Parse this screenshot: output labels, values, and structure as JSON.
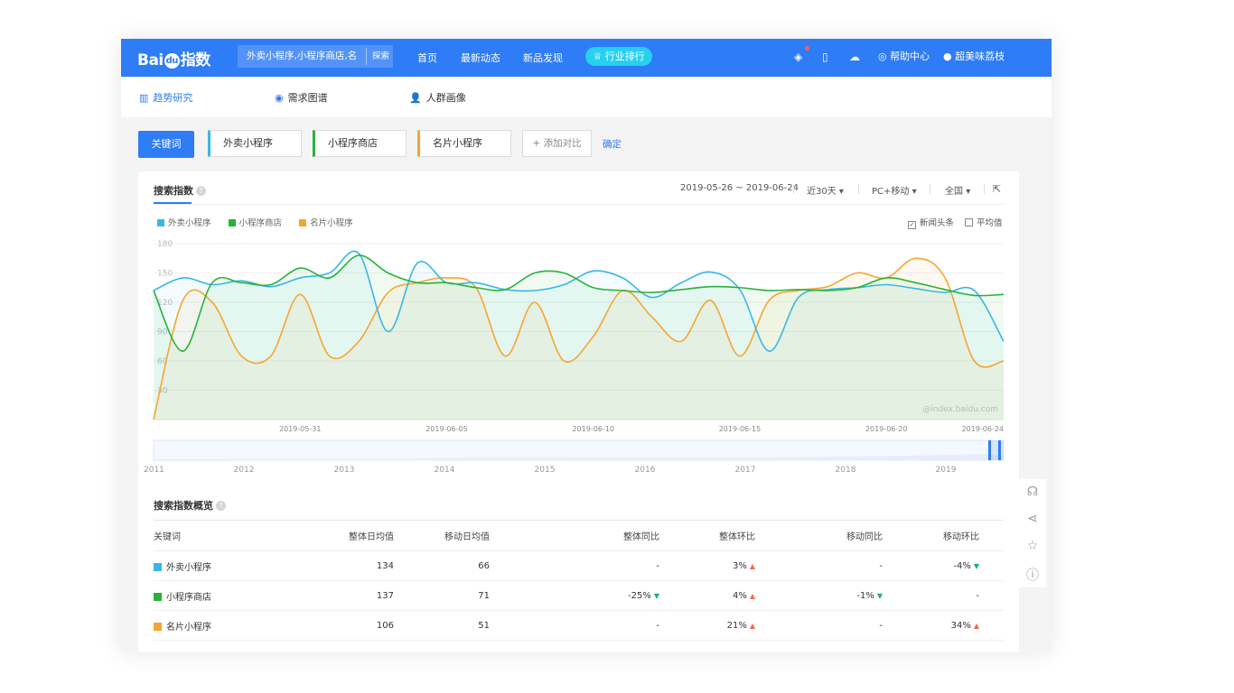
{
  "header": {
    "logo": {
      "pre": "Bai",
      "du": "du",
      "post": "指数"
    },
    "search_value": "外卖小程序,小程序商店,名",
    "search_button": "探索",
    "nav": [
      "首页",
      "最新动态",
      "新品发现"
    ],
    "ranking_pill": "行业排行",
    "help": "帮助中心",
    "user": "超美味荔枝"
  },
  "subnav": [
    "趋势研究",
    "需求图谱",
    "人群画像"
  ],
  "keywords": {
    "label": "关键词",
    "items": [
      "外卖小程序",
      "小程序商店",
      "名片小程序"
    ],
    "add_compare": "添加对比",
    "confirm": "确定"
  },
  "panel": {
    "title": "搜索指数",
    "date_range": "2019-05-26 ~ 2019-06-24",
    "period": "近30天",
    "device": "PC+移动",
    "region": "全国",
    "checkbox_news": "新闻头条",
    "checkbox_avg": "平均值"
  },
  "colors": {
    "primary": "#2e7cf6",
    "s1": "#39b7e6",
    "s2": "#27b33a",
    "s3": "#f5a631",
    "pill": "#27d0ef"
  },
  "chart_data": {
    "type": "line",
    "watermark": "@index.baidu.com",
    "ylim": [
      0,
      180
    ],
    "y_ticks": [
      30,
      60,
      90,
      120,
      150,
      180
    ],
    "x_tick_labels": [
      "2019-05-31",
      "2019-06-05",
      "2019-06-10",
      "2019-06-15",
      "2019-06-20",
      "2019-06-24"
    ],
    "x": [
      "2019-05-26",
      "2019-05-27",
      "2019-05-28",
      "2019-05-29",
      "2019-05-30",
      "2019-05-31",
      "2019-06-01",
      "2019-06-02",
      "2019-06-03",
      "2019-06-04",
      "2019-06-05",
      "2019-06-06",
      "2019-06-07",
      "2019-06-08",
      "2019-06-09",
      "2019-06-10",
      "2019-06-11",
      "2019-06-12",
      "2019-06-13",
      "2019-06-14",
      "2019-06-15",
      "2019-06-16",
      "2019-06-17",
      "2019-06-18",
      "2019-06-19",
      "2019-06-20",
      "2019-06-21",
      "2019-06-22",
      "2019-06-23",
      "2019-06-24"
    ],
    "series": [
      {
        "name": "外卖小程序",
        "color": "#39b7e6",
        "values": [
          132,
          145,
          138,
          142,
          136,
          145,
          150,
          170,
          90,
          160,
          140,
          140,
          133,
          132,
          138,
          152,
          145,
          125,
          140,
          151,
          133,
          70,
          125,
          133,
          135,
          138,
          134,
          130,
          132,
          80
        ]
      },
      {
        "name": "小程序商店",
        "color": "#27b33a",
        "values": [
          132,
          70,
          140,
          140,
          138,
          155,
          145,
          168,
          150,
          140,
          140,
          135,
          133,
          150,
          150,
          135,
          132,
          130,
          133,
          136,
          135,
          132,
          133,
          132,
          135,
          145,
          140,
          133,
          127,
          128
        ]
      },
      {
        "name": "名片小程序",
        "color": "#f5a631",
        "values": [
          0,
          122,
          120,
          65,
          65,
          128,
          65,
          80,
          130,
          140,
          145,
          135,
          65,
          120,
          60,
          85,
          132,
          105,
          80,
          122,
          65,
          122,
          132,
          136,
          150,
          145,
          165,
          145,
          60,
          60
        ]
      }
    ],
    "slider_years": [
      "2011",
      "2012",
      "2013",
      "2014",
      "2015",
      "2016",
      "2017",
      "2018",
      "2019"
    ]
  },
  "summary": {
    "title": "搜索指数概览",
    "headers": [
      "关键词",
      "整体日均值",
      "移动日均值",
      "整体同比",
      "整体环比",
      "移动同比",
      "移动环比"
    ],
    "rows": [
      {
        "name": "外卖小程序",
        "color": "#39b7e6",
        "overall": "134",
        "mobile": "66",
        "yoy": "-",
        "yoy_dir": "",
        "mom": "3%",
        "mom_dir": "up",
        "myoy": "-",
        "myoy_dir": "",
        "mmom": "-4%",
        "mmom_dir": "down"
      },
      {
        "name": "小程序商店",
        "color": "#27b33a",
        "overall": "137",
        "mobile": "71",
        "yoy": "-25%",
        "yoy_dir": "down",
        "mom": "4%",
        "mom_dir": "up",
        "myoy": "-1%",
        "myoy_dir": "down",
        "mmom": "-",
        "mmom_dir": ""
      },
      {
        "name": "名片小程序",
        "color": "#f5a631",
        "overall": "106",
        "mobile": "51",
        "yoy": "-",
        "yoy_dir": "",
        "mom": "21%",
        "mom_dir": "up",
        "myoy": "-",
        "myoy_dir": "",
        "mmom": "34%",
        "mmom_dir": "up"
      }
    ]
  }
}
